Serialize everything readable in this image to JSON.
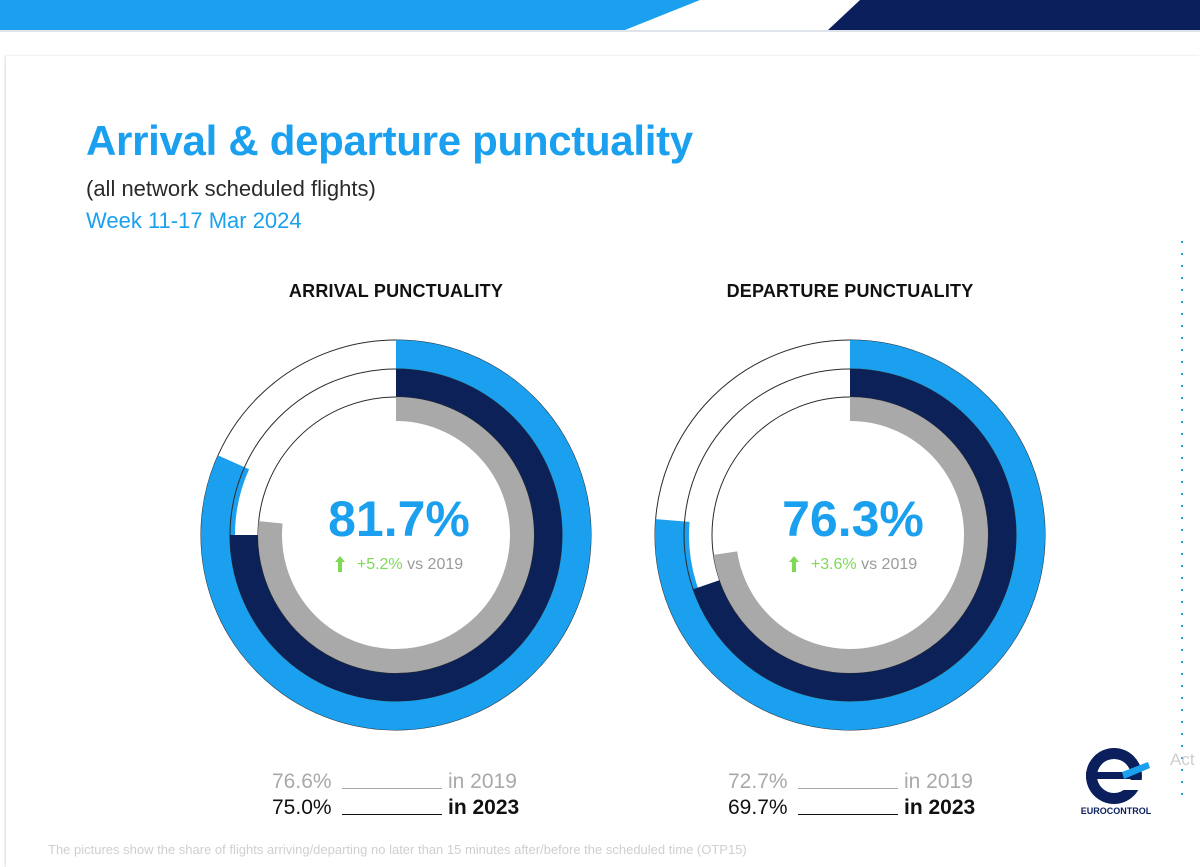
{
  "header": {
    "title": "Arrival & departure punctuality",
    "subtitle": "(all network scheduled flights)",
    "period": "Week 11-17 Mar 2024"
  },
  "colors": {
    "accent": "#1aa0ee",
    "navy": "#0b2157",
    "grey": "#a9a9a9",
    "positive": "#7ed957",
    "banner_light": "#1aa0ee",
    "banner_dark": "#0b1f5c"
  },
  "chart_data": [
    {
      "type": "donut",
      "title": "ARRIVAL PUNCTUALITY",
      "rings_outer_to_inner": [
        "2024",
        "2023",
        "2019"
      ],
      "values": {
        "2024": 81.7,
        "2023": 75.0,
        "2019": 76.6
      },
      "center_value": "81.7%",
      "change": "+5.2%",
      "change_suffix": "vs 2019",
      "legend": [
        {
          "value": "76.6%",
          "label": "in 2019"
        },
        {
          "value": "75.0%",
          "label": "in 2023"
        }
      ]
    },
    {
      "type": "donut",
      "title": "DEPARTURE PUNCTUALITY",
      "rings_outer_to_inner": [
        "2024",
        "2023",
        "2019"
      ],
      "values": {
        "2024": 76.3,
        "2023": 69.7,
        "2019": 72.7
      },
      "center_value": "76.3%",
      "change": "+3.6%",
      "change_suffix": "vs 2019",
      "legend": [
        {
          "value": "72.7%",
          "label": "in 2019"
        },
        {
          "value": "69.7%",
          "label": "in 2023"
        }
      ]
    }
  ],
  "footnote": "The pictures show the share of flights arriving/departing no later than 15 minutes after/before the scheduled time (OTP15)",
  "logo": {
    "icon": "eurocontrol-logo-icon",
    "text": "EUROCONTROL"
  },
  "side_overlay_text": "Act"
}
